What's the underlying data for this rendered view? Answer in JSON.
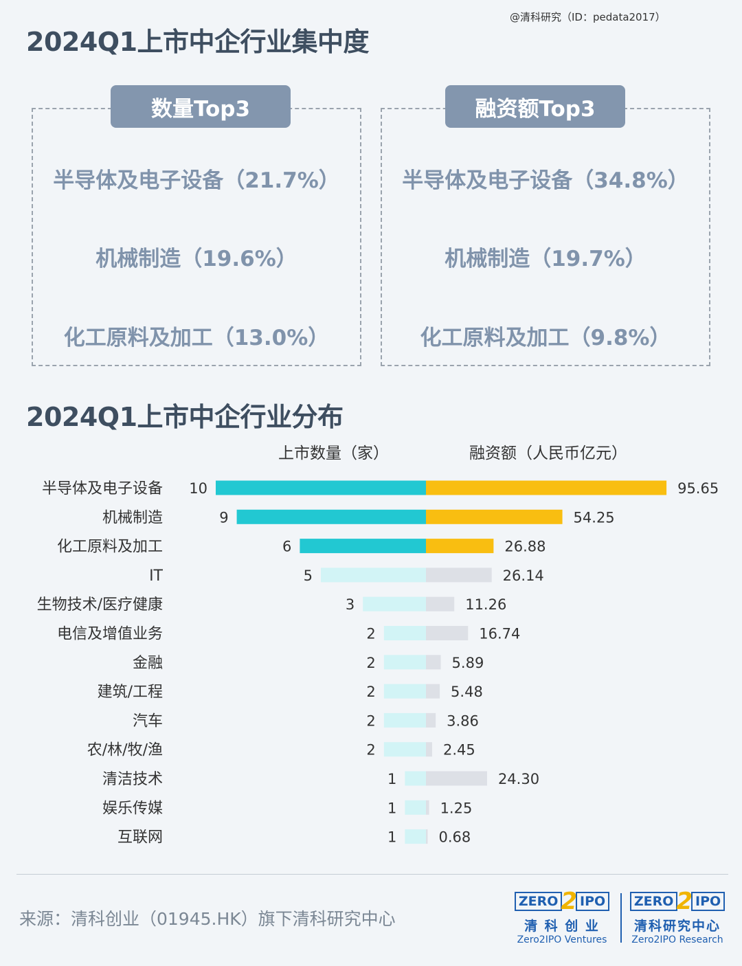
{
  "watermark": "@清科研究（ID：pedata2017）",
  "concentration": {
    "title": "2024Q1上市中企行业集中度",
    "count_top3": {
      "header": "数量Top3",
      "items": [
        "半导体及电子设备（21.7%）",
        "机械制造（19.6%）",
        "化工原料及加工（13.0%）"
      ]
    },
    "amount_top3": {
      "header": "融资额Top3",
      "items": [
        "半导体及电子设备（34.8%）",
        "机械制造（19.7%）",
        "化工原料及加工（9.8%）"
      ]
    }
  },
  "distribution": {
    "title": "2024Q1上市中企行业分布",
    "count_header": "上市数量（家）",
    "amount_header": "融资额（人民币亿元）"
  },
  "chart_data": {
    "type": "bar",
    "categories": [
      "半导体及电子设备",
      "机械制造",
      "化工原料及加工",
      "IT",
      "生物技术/医疗健康",
      "电信及增值业务",
      "金融",
      "建筑/工程",
      "汽车",
      "农/林/牧/渔",
      "清洁技术",
      "娱乐传媒",
      "互联网"
    ],
    "series": [
      {
        "name": "上市数量（家）",
        "values": [
          10,
          9,
          6,
          5,
          3,
          2,
          2,
          2,
          2,
          2,
          1,
          1,
          1
        ],
        "labels": [
          "10",
          "9",
          "6",
          "5",
          "3",
          "2",
          "2",
          "2",
          "2",
          "2",
          "1",
          "1",
          "1"
        ]
      },
      {
        "name": "融资额（人民币亿元）",
        "values": [
          95.65,
          54.25,
          26.88,
          26.14,
          11.26,
          16.74,
          5.89,
          5.48,
          3.86,
          2.45,
          24.3,
          1.25,
          0.68
        ],
        "labels": [
          "95.65",
          "54.25",
          "26.88",
          "26.14",
          "11.26",
          "16.74",
          "5.89",
          "5.48",
          "3.86",
          "2.45",
          "24.30",
          "1.25",
          "0.68"
        ]
      }
    ],
    "highlight_top": 3,
    "colors": {
      "count_top": "#22c8d2",
      "count_rest": "#d2f4f6",
      "amount_top": "#f9be11",
      "amount_rest": "#dde0e6"
    }
  },
  "footer": {
    "source": "来源：清科创业（01945.HK）旗下清科研究中心",
    "logo_left": {
      "box1": "ZERO",
      "two": "2",
      "box2": "IPO",
      "cn": "清 科 创 业",
      "en": "Zero2IPO Ventures"
    },
    "logo_right": {
      "box1": "ZERO",
      "two": "2",
      "box2": "IPO",
      "cn": "清科研究中心",
      "en": "Zero2IPO Research"
    }
  }
}
